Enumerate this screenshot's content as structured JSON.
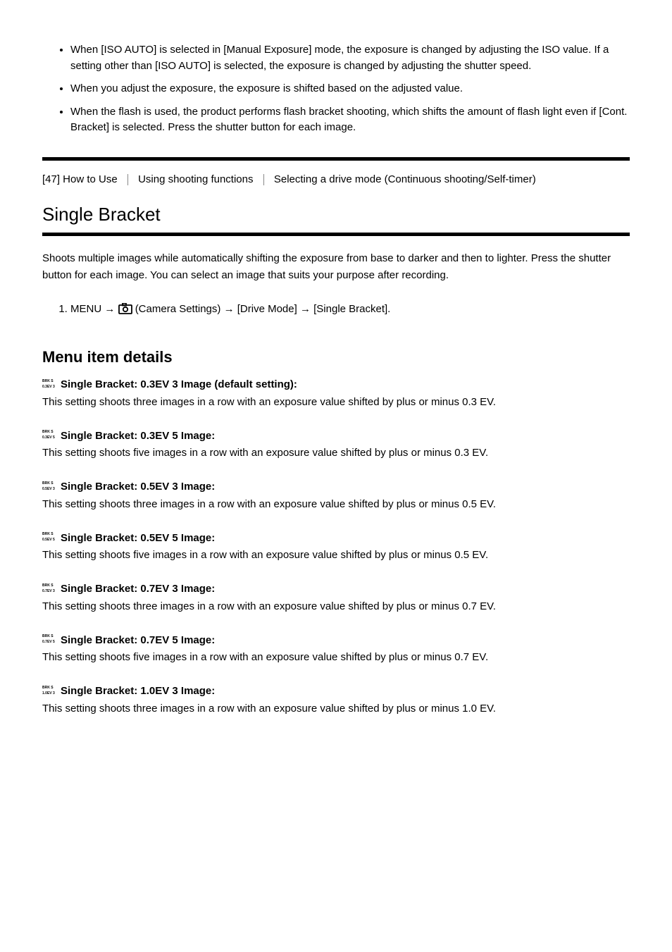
{
  "notes": [
    "When [ISO AUTO] is selected in [Manual Exposure] mode, the exposure is changed by adjusting the ISO value. If a setting other than [ISO AUTO] is selected, the exposure is changed by adjusting the shutter speed.",
    "When you adjust the exposure, the exposure is shifted based on the adjusted value.",
    "When the flash is used, the product performs flash bracket shooting, which shifts the amount of flash light even if [Cont. Bracket] is selected. Press the shutter button for each image."
  ],
  "breadcrumb": {
    "item1": "[47] How to Use",
    "item2": "Using shooting functions",
    "item3": "Selecting a drive mode (Continuous shooting/Self-timer)"
  },
  "section_title": "Single Bracket",
  "intro": "Shoots multiple images while automatically shifting the exposure from base to darker and then to lighter. Press the shutter button for each image. You can select an image that suits your purpose after recording.",
  "step": {
    "prefix": "MENU",
    "mid": "(Camera Settings)",
    "label": "[Drive Mode]",
    "suffix": "[Single Bracket]."
  },
  "details_heading": "Menu item details",
  "items": [
    {
      "icon_top": "BRK S",
      "icon_bottom": "0.3EV 3",
      "title": "Single Bracket: 0.3EV 3 Image (default setting):",
      "desc": "This setting shoots three images in a row with an exposure value shifted by plus or minus 0.3 EV."
    },
    {
      "icon_top": "BRK S",
      "icon_bottom": "0.3EV 5",
      "title": "Single Bracket: 0.3EV 5 Image:",
      "desc": "This setting shoots five images in a row with an exposure value shifted by plus or minus 0.3 EV."
    },
    {
      "icon_top": "BRK S",
      "icon_bottom": "0.5EV 3",
      "title": "Single Bracket: 0.5EV 3 Image:",
      "desc": "This setting shoots three images in a row with an exposure value shifted by plus or minus 0.5 EV."
    },
    {
      "icon_top": "BRK S",
      "icon_bottom": "0.5EV 5",
      "title": "Single Bracket: 0.5EV 5 Image:",
      "desc": "This setting shoots five images in a row with an exposure value shifted by plus or minus 0.5 EV."
    },
    {
      "icon_top": "BRK S",
      "icon_bottom": "0.7EV 3",
      "title": "Single Bracket: 0.7EV 3 Image:",
      "desc": "This setting shoots three images in a row with an exposure value shifted by plus or minus 0.7 EV."
    },
    {
      "icon_top": "BRK S",
      "icon_bottom": "0.7EV 5",
      "title": "Single Bracket: 0.7EV 5 Image:",
      "desc": "This setting shoots five images in a row with an exposure value shifted by plus or minus 0.7 EV."
    },
    {
      "icon_top": "BRK S",
      "icon_bottom": "1.0EV 3",
      "title": " Single Bracket: 1.0EV 3 Image:",
      "desc": "This setting shoots three images in a row with an exposure value shifted by plus or minus 1.0 EV."
    }
  ]
}
